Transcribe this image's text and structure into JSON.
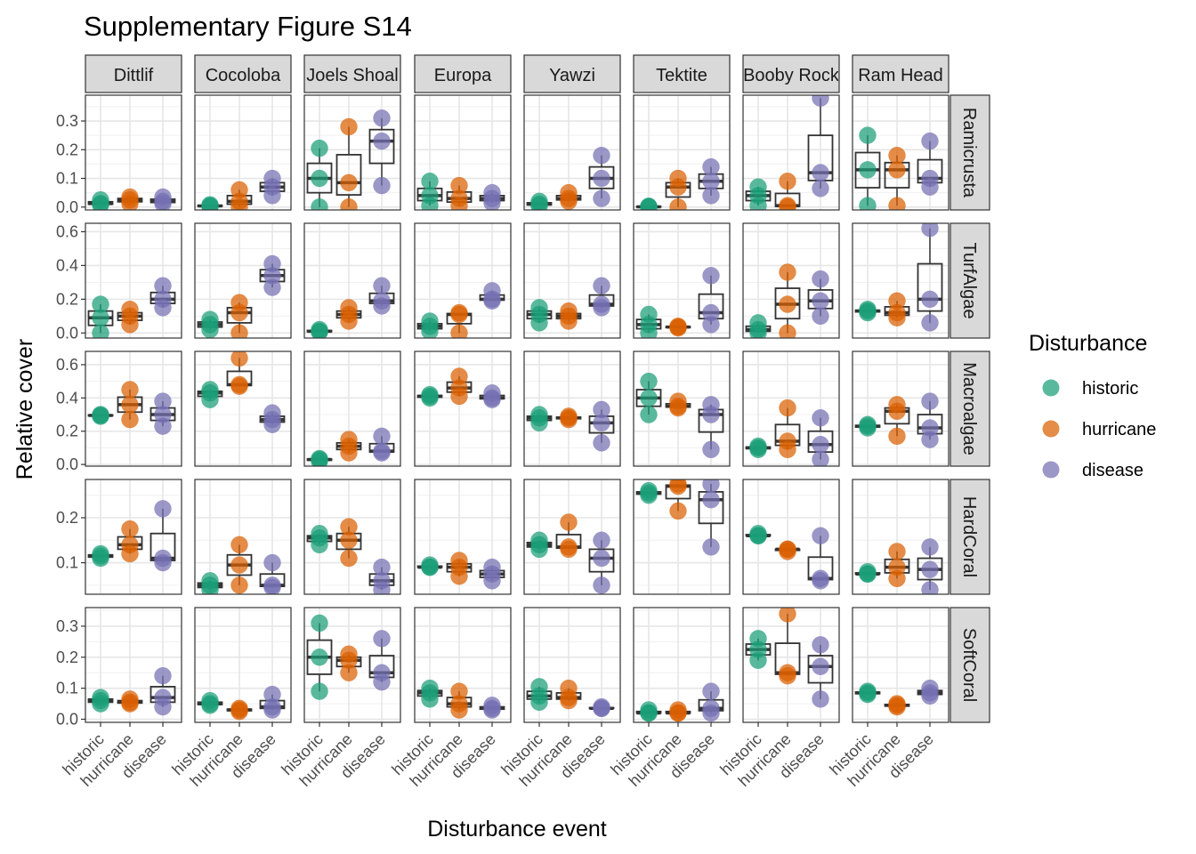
{
  "title": "Supplementary Figure S14",
  "chart_data": {
    "type": "boxplot-with-points (faceted grid)",
    "xlabel": "Disturbance event",
    "ylabel": "Relative cover",
    "categories": [
      "historic",
      "hurricane",
      "disease"
    ],
    "sites": [
      "Dittlif",
      "Cocoloba",
      "Joels Shoal",
      "Europa",
      "Yawzi",
      "Tektite",
      "Booby Rock",
      "Ram Head"
    ],
    "groups": [
      "Ramicrusta",
      "TurfAlgae",
      "Macroalgae",
      "HardCoral",
      "SoftCoral"
    ],
    "legend": {
      "title": "Disturbance",
      "position": "right",
      "entries": [
        {
          "label": "historic",
          "color": "#1b9e77"
        },
        {
          "label": "hurricane",
          "color": "#d95f02"
        },
        {
          "label": "disease",
          "color": "#7570b3"
        }
      ]
    },
    "grid": true,
    "rows": [
      {
        "group": "Ramicrusta",
        "ylim": [
          -0.01,
          0.39
        ],
        "yticks": [
          0.0,
          0.1,
          0.2,
          0.3
        ],
        "ytick_labels": [
          "0.0",
          "0.1",
          "0.2",
          "0.3"
        ],
        "panels": [
          [
            [
              0.025,
              0.012,
              0.008
            ],
            [
              0.035,
              0.025,
              0.012
            ],
            [
              0.035,
              0.02,
              0.012
            ]
          ],
          [
            [
              0.008,
              0.004,
              0.002
            ],
            [
              0.06,
              0.02,
              0.0
            ],
            [
              0.1,
              0.07,
              0.04
            ]
          ],
          [
            [
              0.205,
              0.1,
              0.0
            ],
            [
              0.28,
              0.085,
              0.0
            ],
            [
              0.31,
              0.23,
              0.075
            ]
          ],
          [
            [
              0.09,
              0.04,
              0.005
            ],
            [
              0.075,
              0.03,
              0.005
            ],
            [
              0.05,
              0.03,
              0.015
            ]
          ],
          [
            [
              0.02,
              0.01,
              0.005
            ],
            [
              0.05,
              0.03,
              0.02
            ],
            [
              0.18,
              0.1,
              0.03
            ]
          ],
          [
            [
              0.003,
              0.001,
              0.0
            ],
            [
              0.1,
              0.07,
              0.0
            ],
            [
              0.14,
              0.09,
              0.04
            ]
          ],
          [
            [
              0.07,
              0.04,
              0.005
            ],
            [
              0.09,
              0.005,
              0.0
            ],
            [
              0.38,
              0.12,
              0.065
            ]
          ],
          [
            [
              0.25,
              0.13,
              0.005
            ],
            [
              0.18,
              0.13,
              0.005
            ],
            [
              0.23,
              0.1,
              0.07
            ]
          ]
        ]
      },
      {
        "group": "TurfAlgae",
        "ylim": [
          -0.03,
          0.65
        ],
        "yticks": [
          0.0,
          0.2,
          0.4,
          0.6
        ],
        "ytick_labels": [
          "0.0",
          "0.2",
          "0.4",
          "0.6"
        ],
        "panels": [
          [
            [
              0.17,
              0.09,
              0.0
            ],
            [
              0.14,
              0.1,
              0.05
            ],
            [
              0.28,
              0.2,
              0.15
            ]
          ],
          [
            [
              0.08,
              0.05,
              0.02
            ],
            [
              0.18,
              0.12,
              0.0
            ],
            [
              0.41,
              0.34,
              0.27
            ]
          ],
          [
            [
              0.02,
              0.01,
              0.005
            ],
            [
              0.15,
              0.11,
              0.07
            ],
            [
              0.28,
              0.19,
              0.16
            ]
          ],
          [
            [
              0.07,
              0.04,
              0.01
            ],
            [
              0.12,
              0.11,
              0.0
            ],
            [
              0.25,
              0.2,
              0.19
            ]
          ],
          [
            [
              0.15,
              0.11,
              0.06
            ],
            [
              0.13,
              0.1,
              0.07
            ],
            [
              0.28,
              0.17,
              0.15
            ]
          ],
          [
            [
              0.11,
              0.05,
              0.0
            ],
            [
              0.04,
              0.035,
              0.03
            ],
            [
              0.34,
              0.12,
              0.05
            ]
          ],
          [
            [
              0.06,
              0.02,
              0.0
            ],
            [
              0.36,
              0.17,
              0.0
            ],
            [
              0.32,
              0.19,
              0.1
            ]
          ],
          [
            [
              0.14,
              0.13,
              0.12
            ],
            [
              0.19,
              0.12,
              0.09
            ],
            [
              0.62,
              0.2,
              0.06
            ]
          ]
        ]
      },
      {
        "group": "Macroalgae",
        "ylim": [
          -0.01,
          0.68
        ],
        "yticks": [
          0.0,
          0.2,
          0.4,
          0.6
        ],
        "ytick_labels": [
          "0.0",
          "0.2",
          "0.4",
          "0.6"
        ],
        "panels": [
          [
            [
              0.3,
              0.295,
              0.29
            ],
            [
              0.45,
              0.36,
              0.27
            ],
            [
              0.38,
              0.3,
              0.23
            ]
          ],
          [
            [
              0.45,
              0.43,
              0.39
            ],
            [
              0.64,
              0.48,
              0.47
            ],
            [
              0.31,
              0.27,
              0.24
            ]
          ],
          [
            [
              0.035,
              0.03,
              0.02
            ],
            [
              0.15,
              0.11,
              0.07
            ],
            [
              0.17,
              0.08,
              0.07
            ]
          ],
          [
            [
              0.42,
              0.41,
              0.4
            ],
            [
              0.53,
              0.46,
              0.41
            ],
            [
              0.43,
              0.4,
              0.39
            ]
          ],
          [
            [
              0.3,
              0.28,
              0.25
            ],
            [
              0.29,
              0.28,
              0.27
            ],
            [
              0.33,
              0.25,
              0.13
            ]
          ],
          [
            [
              0.5,
              0.4,
              0.3
            ],
            [
              0.38,
              0.35,
              0.34
            ],
            [
              0.36,
              0.3,
              0.09
            ]
          ],
          [
            [
              0.11,
              0.1,
              0.09
            ],
            [
              0.34,
              0.14,
              0.09
            ],
            [
              0.28,
              0.12,
              0.03
            ]
          ],
          [
            [
              0.24,
              0.23,
              0.22
            ],
            [
              0.36,
              0.32,
              0.17
            ],
            [
              0.38,
              0.22,
              0.15
            ]
          ]
        ]
      },
      {
        "group": "HardCoral",
        "ylim": [
          0.03,
          0.285
        ],
        "yticks": [
          0.1,
          0.2
        ],
        "ytick_labels": [
          "0.1",
          "0.2"
        ],
        "panels": [
          [
            [
              0.12,
              0.115,
              0.11
            ],
            [
              0.175,
              0.14,
              0.12
            ],
            [
              0.22,
              0.11,
              0.1
            ]
          ],
          [
            [
              0.06,
              0.05,
              0.04
            ],
            [
              0.14,
              0.095,
              0.05
            ],
            [
              0.1,
              0.05,
              0.045
            ]
          ],
          [
            [
              0.165,
              0.155,
              0.14
            ],
            [
              0.18,
              0.15,
              0.11
            ],
            [
              0.09,
              0.06,
              0.04
            ]
          ],
          [
            [
              0.095,
              0.09,
              0.09
            ],
            [
              0.105,
              0.09,
              0.07
            ],
            [
              0.09,
              0.075,
              0.06
            ]
          ],
          [
            [
              0.15,
              0.14,
              0.13
            ],
            [
              0.19,
              0.135,
              0.13
            ],
            [
              0.15,
              0.11,
              0.05
            ]
          ],
          [
            [
              0.26,
              0.255,
              0.25
            ],
            [
              0.275,
              0.27,
              0.215
            ],
            [
              0.275,
              0.24,
              0.135
            ]
          ],
          [
            [
              0.165,
              0.16,
              0.16
            ],
            [
              0.13,
              0.13,
              0.125
            ],
            [
              0.16,
              0.065,
              0.06
            ]
          ],
          [
            [
              0.08,
              0.075,
              0.075
            ],
            [
              0.125,
              0.09,
              0.065
            ],
            [
              0.135,
              0.085,
              0.04
            ]
          ]
        ]
      },
      {
        "group": "SoftCoral",
        "ylim": [
          -0.01,
          0.36
        ],
        "yticks": [
          0.0,
          0.1,
          0.2,
          0.3
        ],
        "ytick_labels": [
          "0.0",
          "0.1",
          "0.2",
          "0.3"
        ],
        "panels": [
          [
            [
              0.07,
              0.06,
              0.05
            ],
            [
              0.065,
              0.055,
              0.05
            ],
            [
              0.14,
              0.07,
              0.04
            ]
          ],
          [
            [
              0.06,
              0.05,
              0.045
            ],
            [
              0.035,
              0.03,
              0.025
            ],
            [
              0.08,
              0.04,
              0.03
            ]
          ],
          [
            [
              0.31,
              0.2,
              0.09
            ],
            [
              0.21,
              0.19,
              0.15
            ],
            [
              0.26,
              0.15,
              0.12
            ]
          ],
          [
            [
              0.1,
              0.085,
              0.065
            ],
            [
              0.09,
              0.05,
              0.03
            ],
            [
              0.045,
              0.035,
              0.03
            ]
          ],
          [
            [
              0.105,
              0.075,
              0.055
            ],
            [
              0.1,
              0.07,
              0.06
            ],
            [
              0.04,
              0.035,
              0.035
            ]
          ],
          [
            [
              0.03,
              0.02,
              0.02
            ],
            [
              0.03,
              0.02,
              0.02
            ],
            [
              0.09,
              0.035,
              0.02
            ]
          ],
          [
            [
              0.26,
              0.225,
              0.19
            ],
            [
              0.34,
              0.15,
              0.14
            ],
            [
              0.24,
              0.17,
              0.065
            ]
          ],
          [
            [
              0.09,
              0.085,
              0.08
            ],
            [
              0.05,
              0.045,
              0.04
            ],
            [
              0.1,
              0.085,
              0.075
            ]
          ]
        ]
      }
    ]
  }
}
